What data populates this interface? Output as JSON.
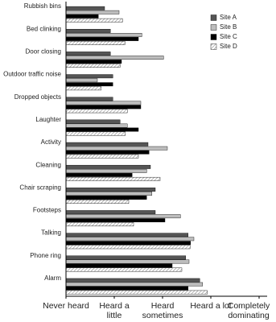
{
  "chart_data": {
    "type": "bar",
    "orientation": "horizontal",
    "categories": [
      "Rubbish bins",
      "Bed clinking",
      "Door closing",
      "Outdoor traffic noise",
      "Dropped objects",
      "Laughter",
      "Activity",
      "Cleaning",
      "Chair scraping",
      "Footsteps",
      "Talking",
      "Phone ring",
      "Alarm"
    ],
    "series": [
      {
        "name": "Site A",
        "color": "#555555",
        "hatch": false,
        "values": [
          1.8,
          1.92,
          1.92,
          1.97,
          1.97,
          2.12,
          2.7,
          2.75,
          2.85,
          2.85,
          3.53,
          3.48,
          3.77
        ]
      },
      {
        "name": "Site B",
        "color": "#bdbdbd",
        "hatch": false,
        "values": [
          2.1,
          2.57,
          3.02,
          1.65,
          2.55,
          2.27,
          3.1,
          2.67,
          2.78,
          3.37,
          3.65,
          3.55,
          3.83
        ]
      },
      {
        "name": "Site C",
        "color": "#000000",
        "hatch": false,
        "values": [
          1.67,
          2.5,
          2.15,
          1.97,
          2.55,
          2.5,
          2.72,
          2.37,
          2.67,
          3.05,
          3.58,
          3.2,
          3.53
        ]
      },
      {
        "name": "Site D",
        "color": "#888888",
        "hatch": true,
        "values": [
          2.17,
          2.22,
          2.12,
          1.73,
          2.27,
          2.23,
          2.5,
          2.95,
          2.3,
          2.4,
          3.57,
          3.4,
          3.93
        ]
      }
    ],
    "xlim": [
      1,
      5
    ],
    "xticks": [
      {
        "value": 1,
        "label": "Never heard"
      },
      {
        "value": 2,
        "label": "Heard a little"
      },
      {
        "value": 3,
        "label": "Heard sometimes"
      },
      {
        "value": 4,
        "label": "Heard a lot"
      },
      {
        "value": 5,
        "label": "Completely dominating"
      }
    ],
    "legend": "upper right"
  }
}
